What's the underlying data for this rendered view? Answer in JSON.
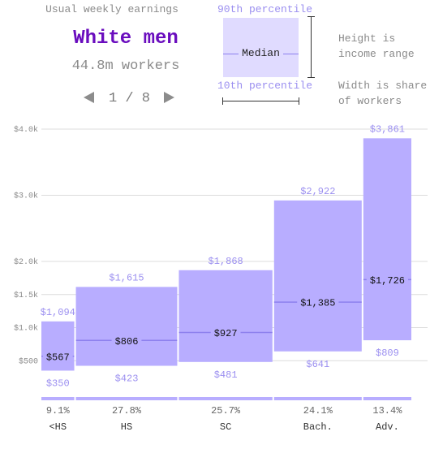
{
  "header": {
    "label": "Usual weekly earnings",
    "group_name": "White men",
    "group_workers": "44.8m workers",
    "page": "1 / 8"
  },
  "legend": {
    "p90_label": "90th percentile",
    "median_label": "Median",
    "p10_label": "10th percentile",
    "height_note": "Height is\nincome range",
    "width_note": "Width is share\nof workers"
  },
  "colors": {
    "bar": "#b8adff",
    "bar_light": "#e0dbff",
    "median_line": "#8d80ee",
    "accent_text": "#9b8ff0",
    "title": "#6a0dbe"
  },
  "chart_data": {
    "type": "bar",
    "title": "Usual weekly earnings",
    "ylim": [
      0,
      4000
    ],
    "y_ticks": [
      {
        "value": 500,
        "label": "$500"
      },
      {
        "value": 1000,
        "label": "$1.0k"
      },
      {
        "value": 1500,
        "label": "$1.5k"
      },
      {
        "value": 2000,
        "label": "$2.0k"
      },
      {
        "value": 3000,
        "label": "$3.0k"
      },
      {
        "value": 4000,
        "label": "$4.0k"
      }
    ],
    "grid": true,
    "categories": [
      "<HS",
      "HS",
      "SC",
      "Bach.",
      "Adv."
    ],
    "share_labels": [
      "9.1%",
      "27.8%",
      "25.7%",
      "24.1%",
      "13.4%"
    ],
    "share": [
      9.1,
      27.8,
      25.7,
      24.1,
      13.4
    ],
    "p10": [
      350,
      423,
      481,
      641,
      809
    ],
    "median": [
      567,
      806,
      927,
      1385,
      1726
    ],
    "p90": [
      1094,
      1615,
      1868,
      2922,
      3861
    ],
    "p10_labels": [
      "$350",
      "$423",
      "$481",
      "$641",
      "$809"
    ],
    "median_labels": [
      "$567",
      "$806",
      "$927",
      "$1,385",
      "$1,726"
    ],
    "p90_labels": [
      "$1,094",
      "$1,615",
      "$1,868",
      "$2,922",
      "$3,861"
    ]
  }
}
